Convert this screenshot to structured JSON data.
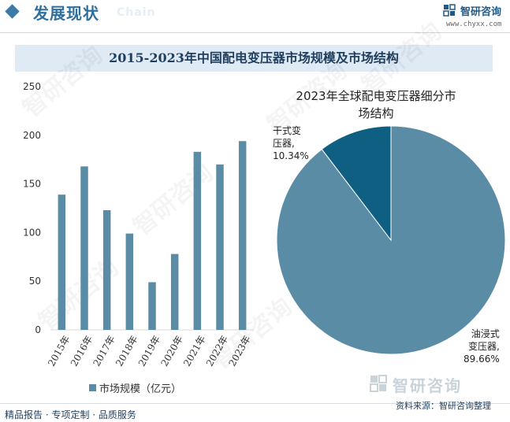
{
  "header": {
    "title": "发展现状",
    "subtitle": "Chain",
    "brand_name": "智研咨询",
    "brand_url": "www.chyxx.com"
  },
  "chart_title": "2015-2023年中国配电变压器市场规模及市场结构",
  "colors": {
    "bar": "#5a8da5",
    "pie_main": "#5a8da5",
    "pie_minor": "#0e5f82",
    "accent": "#2f6f9f",
    "title_band": "#dfeaf4"
  },
  "chart_data": [
    {
      "type": "bar",
      "categories": [
        "2015年",
        "2016年",
        "2017年",
        "2018年",
        "2019年",
        "2020年",
        "2021年",
        "2022年",
        "2023年"
      ],
      "series": [
        {
          "name": "市场规模（亿元）",
          "values": [
            139,
            168,
            123,
            99,
            49,
            78,
            183,
            170,
            194
          ]
        }
      ],
      "y_ticks": [
        "0",
        "50",
        "100",
        "150",
        "200",
        "250"
      ],
      "ylim": [
        0,
        250
      ],
      "legend_label": "市场规模（亿元）",
      "legend_position": "bottom"
    },
    {
      "type": "pie",
      "title_lines": [
        "2023年全球配电变压器细分市",
        "场结构"
      ],
      "slices": [
        {
          "label_lines": [
            "油浸式",
            "变压器,",
            "89.66%"
          ],
          "value": 89.66
        },
        {
          "label_lines": [
            "干式变",
            "压器,",
            "10.34%"
          ],
          "value": 10.34
        }
      ]
    }
  ],
  "watermark_text": "智研咨询",
  "footer": {
    "left": "精品报告 · 专项定制 · 品质服务",
    "right": "资料来源：智研咨询整理"
  }
}
